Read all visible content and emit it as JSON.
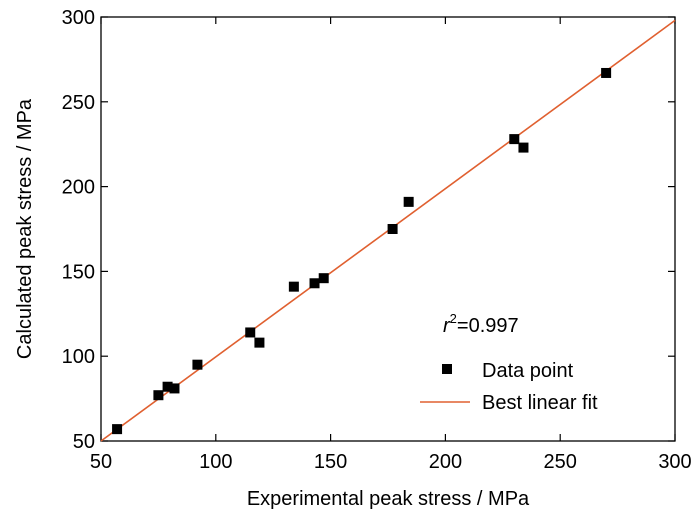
{
  "chart_data": {
    "type": "scatter",
    "xlabel": "Experimental peak stress / MPa",
    "ylabel": "Calculated peak stress / MPa",
    "xlim": [
      50,
      300
    ],
    "ylim": [
      50,
      300
    ],
    "xticks": [
      50,
      100,
      150,
      200,
      250,
      300
    ],
    "yticks": [
      50,
      100,
      150,
      200,
      250,
      300
    ],
    "grid": false,
    "annotation": {
      "r": "r",
      "exp": "2",
      "rest": "=0.997"
    },
    "legend": {
      "position": "lower-right",
      "entries": [
        "Data point",
        "Best linear fit"
      ]
    },
    "series": [
      {
        "name": "Data point",
        "type": "scatter",
        "marker": "square",
        "color": "#000000",
        "points": [
          [
            57,
            57
          ],
          [
            75,
            77
          ],
          [
            79,
            82
          ],
          [
            82,
            81
          ],
          [
            92,
            95
          ],
          [
            115,
            114
          ],
          [
            119,
            108
          ],
          [
            134,
            141
          ],
          [
            143,
            143
          ],
          [
            147,
            146
          ],
          [
            177,
            175
          ],
          [
            184,
            191
          ],
          [
            230,
            228
          ],
          [
            234,
            223
          ],
          [
            270,
            267
          ]
        ]
      },
      {
        "name": "Best linear fit",
        "type": "line",
        "color": "#e06030",
        "points": [
          [
            50,
            50
          ],
          [
            300,
            298
          ]
        ]
      }
    ]
  }
}
